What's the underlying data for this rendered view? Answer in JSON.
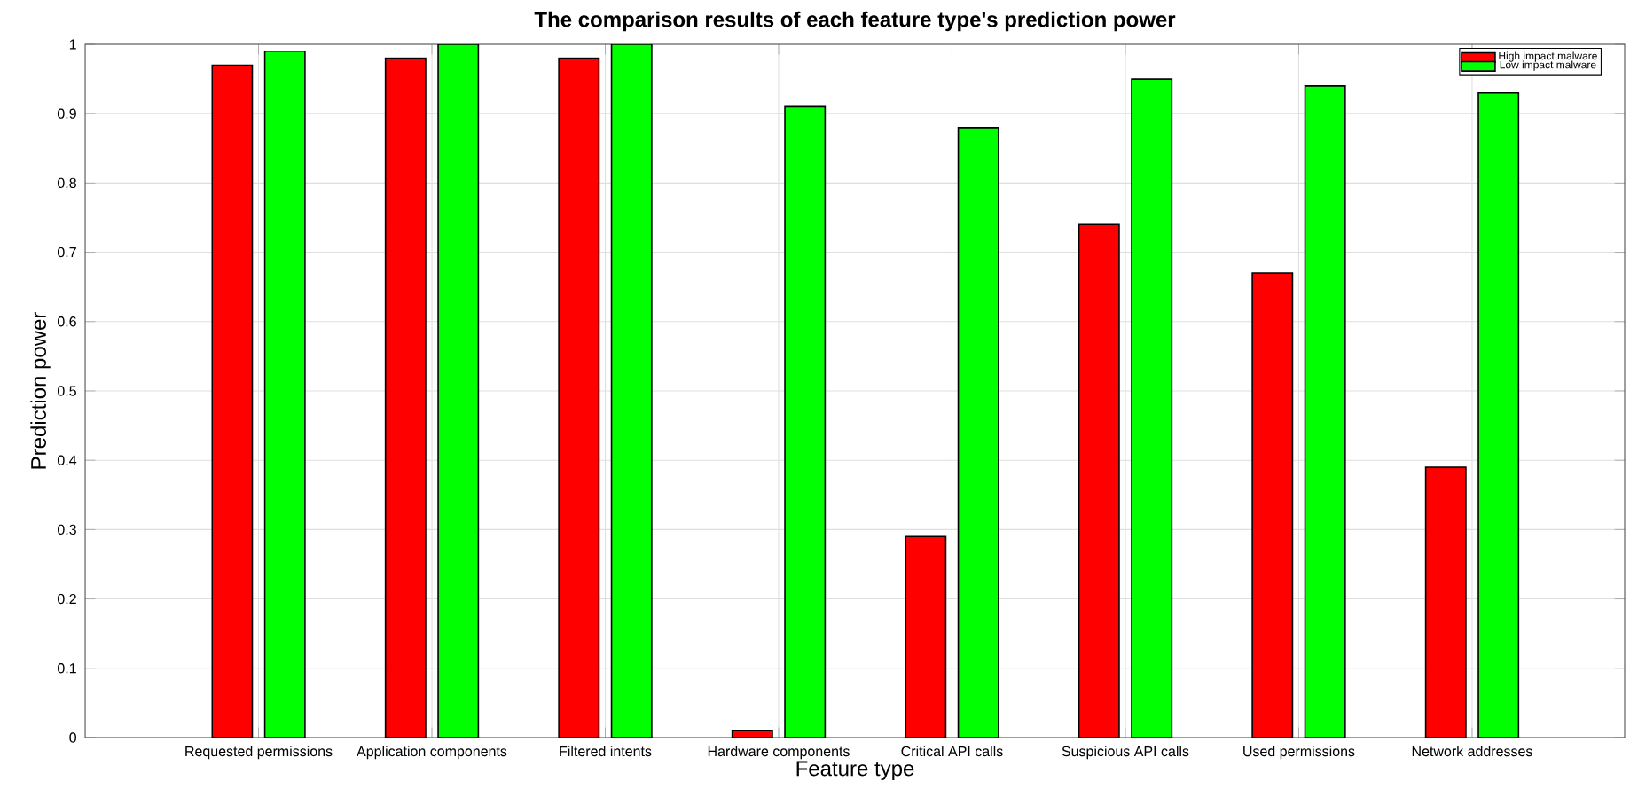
{
  "chart_data": {
    "type": "bar",
    "title": "The comparison results of each feature type's prediction power",
    "xlabel": "Feature type",
    "ylabel": "Prediction power",
    "categories": [
      "Requested permissions",
      "Application components",
      "Filtered intents",
      "Hardware components",
      "Critical API calls",
      "Suspicious API calls",
      "Used permissions",
      "Network addresses"
    ],
    "series": [
      {
        "name": "High impact malware",
        "color": "#ff0000",
        "values": [
          0.97,
          0.98,
          0.98,
          0.01,
          0.29,
          0.74,
          0.67,
          0.39
        ]
      },
      {
        "name": "Low impact malware",
        "color": "#00ff00",
        "values": [
          0.99,
          1.0,
          1.0,
          0.91,
          0.88,
          0.95,
          0.94,
          0.93
        ]
      }
    ],
    "ylim": [
      0,
      1
    ],
    "yticks": [
      0,
      0.1,
      0.2,
      0.3,
      0.4,
      0.5,
      0.6,
      0.7,
      0.8,
      0.9,
      1
    ],
    "grid": true,
    "legend": "top right"
  }
}
